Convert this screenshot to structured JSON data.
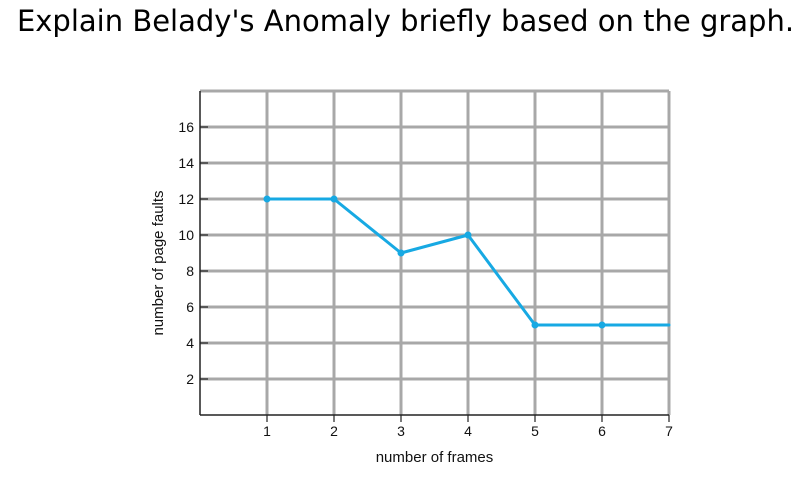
{
  "question": "Explain Belady's Anomaly briefly based on the graph.",
  "chart_data": {
    "type": "line",
    "title": "",
    "xlabel": "number of frames",
    "ylabel": "number of page faults",
    "x": [
      1,
      2,
      3,
      4,
      5,
      6,
      7
    ],
    "series": [
      {
        "name": "",
        "values": [
          12,
          12,
          9,
          10,
          5,
          5,
          5
        ],
        "color": "#17a9e3"
      }
    ],
    "xlim": [
      0,
      7
    ],
    "ylim": [
      0,
      18
    ],
    "xticks": [
      "1",
      "2",
      "3",
      "4",
      "5",
      "6",
      "7"
    ],
    "yticks": [
      "2",
      "4",
      "6",
      "8",
      "10",
      "12",
      "14",
      "16"
    ],
    "grid": true,
    "legend": "none",
    "grid_color": "#a8a8a8",
    "axis_color": "#222222"
  }
}
